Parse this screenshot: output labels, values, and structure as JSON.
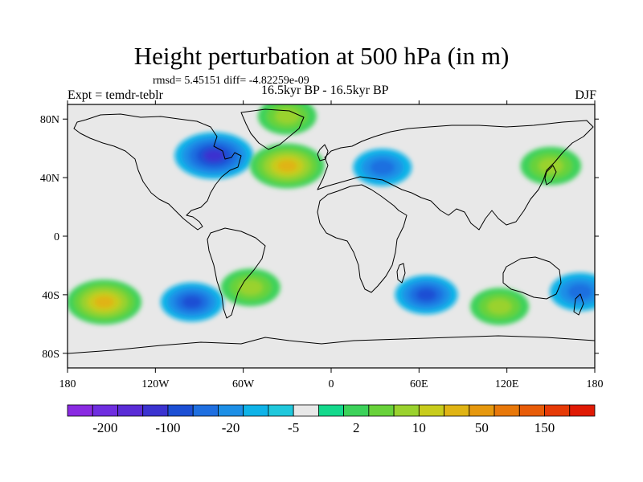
{
  "title": "Height perturbation at 500 hPa (in m)",
  "stats": "rmsd= 5.45151 diff= -4.82259e-09",
  "experiment": "Expt = temdr-teblr",
  "period": "16.5kyr BP - 16.5kyr BP",
  "season": "DJF",
  "axes": {
    "lon_labels": [
      "180",
      "120W",
      "60W",
      "0",
      "60E",
      "120E",
      "180"
    ],
    "lon_values": [
      -180,
      -120,
      -60,
      0,
      60,
      120,
      180
    ],
    "lat_labels": [
      "80N",
      "40N",
      "0",
      "40S",
      "80S"
    ],
    "lat_values": [
      80,
      40,
      0,
      -40,
      -80
    ],
    "lon_range": [
      -180,
      180
    ],
    "lat_range": [
      -90,
      90
    ]
  },
  "colorbar": {
    "colors": [
      "#8a2be2",
      "#6f2ee0",
      "#5a2cd6",
      "#3b33d0",
      "#1c4fd4",
      "#1f6fe0",
      "#1d8fe6",
      "#0fb3e8",
      "#20c8dc",
      "#e8e8e8",
      "#14d98c",
      "#3cd25a",
      "#68d23a",
      "#9ad22e",
      "#c8cc1c",
      "#e0b414",
      "#e6980e",
      "#e8780a",
      "#e85c08",
      "#e63a06",
      "#e01a04"
    ],
    "labels": [
      "-200",
      "-100",
      "-20",
      "-5",
      "2",
      "10",
      "50",
      "150"
    ]
  },
  "features": [
    {
      "name": "north-canada-low",
      "lon": -80,
      "lat": 55,
      "value": -60
    },
    {
      "name": "north-atlantic-high",
      "lon": -30,
      "lat": 48,
      "value": 50
    },
    {
      "name": "arctic-high",
      "lon": -30,
      "lat": 82,
      "value": 10
    },
    {
      "name": "europe-low",
      "lon": 35,
      "lat": 47,
      "value": -10
    },
    {
      "name": "east-asia-high",
      "lon": 150,
      "lat": 48,
      "value": 15
    },
    {
      "name": "south-pacific-high",
      "lon": -155,
      "lat": -45,
      "value": 50
    },
    {
      "name": "south-pacific-low",
      "lon": -95,
      "lat": -45,
      "value": -20
    },
    {
      "name": "south-atlantic-high",
      "lon": -55,
      "lat": -35,
      "value": 12
    },
    {
      "name": "south-indian-low",
      "lon": 65,
      "lat": -40,
      "value": -20
    },
    {
      "name": "australia-high",
      "lon": 115,
      "lat": -48,
      "value": 10
    },
    {
      "name": "tasman-low",
      "lon": 170,
      "lat": -38,
      "value": -15
    }
  ]
}
